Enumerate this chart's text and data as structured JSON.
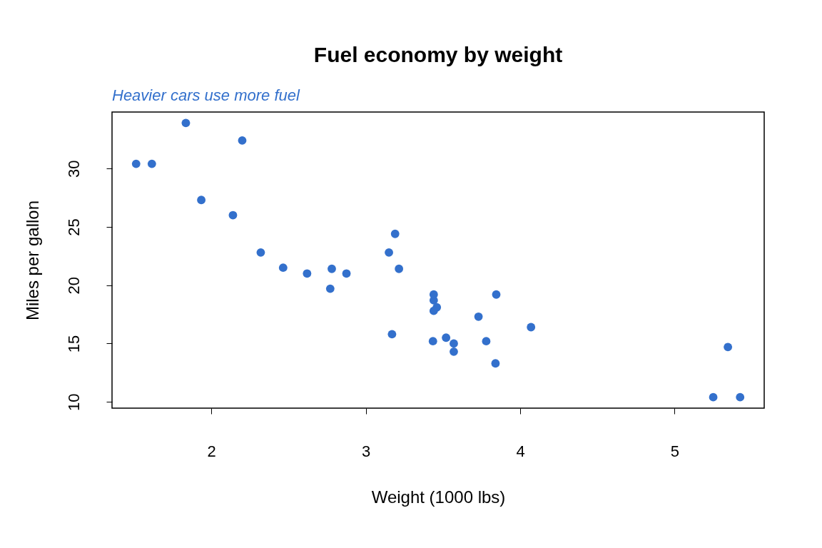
{
  "chart_data": {
    "type": "scatter",
    "title": "Fuel economy by weight",
    "subtitle": "Heavier cars use more fuel",
    "xlabel": "Weight (1000 lbs)",
    "ylabel": "Miles per gallon",
    "x": [
      2.62,
      2.875,
      2.32,
      3.215,
      3.44,
      3.46,
      3.57,
      3.19,
      3.15,
      3.44,
      3.44,
      4.07,
      3.73,
      3.78,
      5.25,
      5.424,
      5.345,
      2.2,
      1.615,
      1.835,
      2.465,
      3.52,
      3.435,
      3.84,
      3.845,
      1.935,
      2.14,
      1.513,
      3.17,
      2.77,
      3.57,
      2.78
    ],
    "series": [
      {
        "color": "#3370cc",
        "values": [
          21.0,
          21.0,
          22.8,
          21.4,
          18.7,
          18.1,
          14.3,
          24.4,
          22.8,
          19.2,
          17.8,
          16.4,
          17.3,
          15.2,
          10.4,
          10.4,
          14.7,
          32.4,
          30.4,
          33.9,
          21.5,
          15.5,
          15.2,
          13.3,
          19.2,
          27.3,
          26.0,
          30.4,
          15.8,
          19.7,
          15.0,
          21.4
        ]
      }
    ],
    "xlim": [
      1.357,
      5.58
    ],
    "ylim": [
      9.46,
      34.84
    ],
    "xticks": [
      2,
      3,
      4,
      5
    ],
    "yticks": [
      10,
      15,
      20,
      25,
      30
    ],
    "grid": false,
    "marker": "circle"
  }
}
